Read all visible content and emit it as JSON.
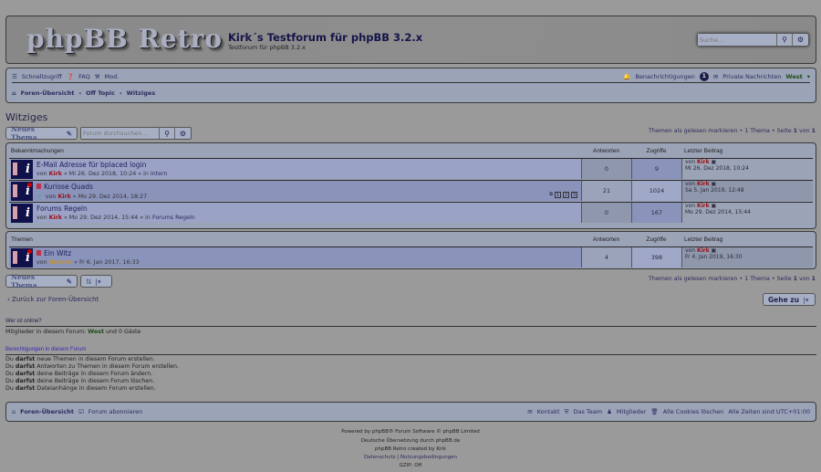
{
  "header": {
    "logo": "phpBB Retro",
    "title": "Kirk´s Testforum für phpBB 3.2.x",
    "description": "Testforum für phpBB 3.2.x",
    "search_placeholder": "Suche…"
  },
  "nav": {
    "quick": "Schnellzugriff",
    "faq": "FAQ",
    "mod": "Mod.",
    "notifications": "Benachrichtigungen",
    "notif_count": "1",
    "pm": "Private Nachrichten",
    "user": "West",
    "breadcrumbs": [
      "Foren-Übersicht",
      "Off Topic",
      "Witziges"
    ]
  },
  "page": {
    "title": "Witziges",
    "new_topic": "Neues Thema",
    "forum_search_placeholder": "Forum durchsuchen…",
    "pagination": {
      "mark_read": "Themen als gelesen markieren",
      "count": "1 Thema",
      "page_label": "Seite",
      "page": "1",
      "of": "von",
      "total": "1"
    }
  },
  "columns": {
    "replies": "Antworten",
    "views": "Zugriffe",
    "last": "Letzter Beitrag"
  },
  "announcements": {
    "heading": "Bekanntmachungen",
    "rows": [
      {
        "title": "E-Mail Adresse für bplaced login",
        "by": "von",
        "author": "Kirk",
        "date": "» Mi 26. Dez 2018, 10:24 » in",
        "forum": "Intern",
        "replies": "0",
        "views": "9",
        "last_by": "von",
        "last_author": "Kirk",
        "last_date": "Mi 26. Dez 2018, 10:24"
      },
      {
        "title": "Kuriose Quads",
        "by": "von",
        "author": "Kirk",
        "date": "» Mo 29. Dez 2014, 18:27",
        "forum": "",
        "replies": "21",
        "views": "1024",
        "last_by": "von",
        "last_author": "Kirk",
        "last_date": "Sa 5. Jan 2019, 12:48",
        "pages": [
          "1",
          "2",
          "3"
        ]
      },
      {
        "title": "Forums Regeln",
        "by": "von",
        "author": "Kirk",
        "date": "» Mo 29. Dez 2014, 15:44 » in",
        "forum": "Forums Regeln",
        "replies": "0",
        "views": "167",
        "last_by": "von",
        "last_author": "Kirk",
        "last_date": "Mo 29. Dez 2014, 15:44"
      }
    ]
  },
  "topics": {
    "heading": "Themen",
    "rows": [
      {
        "title": "Ein Witz",
        "by": "von",
        "author": "Brumm",
        "date": "» Fr 6. Jan 2017, 16:33",
        "replies": "4",
        "views": "398",
        "last_by": "von",
        "last_author": "Kirk",
        "last_date": "Fr 4. Jan 2019, 16:30"
      }
    ]
  },
  "back": "Zurück zur Foren-Übersicht",
  "jump": "Gehe zu",
  "online": {
    "heading": "Wer ist online?",
    "text": "Mitglieder in diesem Forum:",
    "user": "West",
    "rest": "und 0 Gäste"
  },
  "permissions": {
    "heading": "Berechtigungen in diesem Forum",
    "prefix": "Du",
    "verb": "darfst",
    "lines": [
      "neue Themen in diesem Forum erstellen.",
      "Antworten zu Themen in diesem Forum erstellen.",
      "deine Beiträge in diesem Forum ändern.",
      "deine Beiträge in diesem Forum löschen.",
      "Dateianhänge in diesem Forum erstellen."
    ]
  },
  "footer": {
    "home": "Foren-Übersicht",
    "subscribe": "Forum abonnieren",
    "contact": "Kontakt",
    "team": "Das Team",
    "members": "Mitglieder",
    "cookies": "Alle Cookies löschen",
    "tz": "Alle Zeiten sind UTC+01:00",
    "powered": "Powered by phpBB® Forum Software © phpBB Limited",
    "translation": "Deutsche Übersetzung durch phpBB.de",
    "style": "phpBB Retro created by Kirk",
    "privacy": "Datenschutz",
    "terms": "Nutzungsbedingungen",
    "gzip": "GZIP: Off"
  },
  "colors": {
    "background": "#9a9a9a",
    "panel": "#9ba3b6",
    "author": "#9b1010",
    "online_user": "#1d4d1d"
  }
}
